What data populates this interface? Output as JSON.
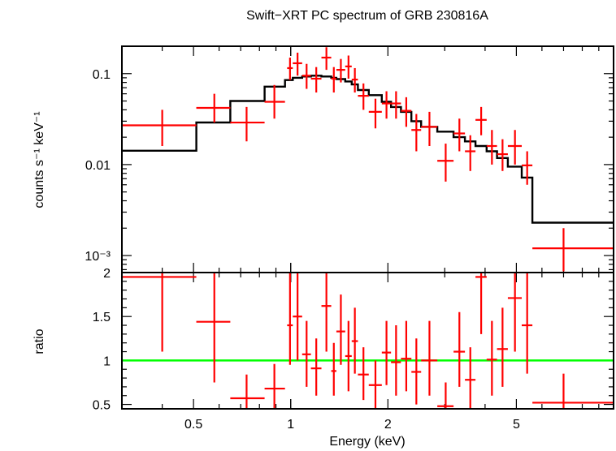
{
  "chart_data": {
    "type": "scatter",
    "title": "Swift−XRT PC spectrum of GRB 230816A",
    "xlabel": "Energy (keV)",
    "x_scale": "log",
    "xlim": [
      0.3,
      10
    ],
    "x_ticks": [
      {
        "value": 0.5,
        "label": "0.5"
      },
      {
        "value": 1,
        "label": "1"
      },
      {
        "value": 2,
        "label": "2"
      },
      {
        "value": 5,
        "label": "5"
      }
    ],
    "colors": {
      "data": "#ff0000",
      "model": "#000000",
      "unity": "#00ff00",
      "axes": "#000000"
    },
    "top_panel": {
      "ylabel": "counts s⁻¹ keV⁻¹",
      "y_scale": "log",
      "ylim": [
        0.00065,
        0.2
      ],
      "y_ticks": [
        {
          "value": 0.1,
          "label": "0.1"
        },
        {
          "value": 0.01,
          "label": "0.01"
        },
        {
          "value": 0.001,
          "label": "10⁻³"
        }
      ],
      "data": [
        {
          "x": 0.4,
          "xlo": 0.3,
          "xhi": 0.51,
          "y": 0.027,
          "ylo": 0.016,
          "yhi": 0.04
        },
        {
          "x": 0.58,
          "xlo": 0.51,
          "xhi": 0.65,
          "y": 0.042,
          "ylo": 0.029,
          "yhi": 0.06
        },
        {
          "x": 0.73,
          "xlo": 0.65,
          "xhi": 0.83,
          "y": 0.029,
          "ylo": 0.018,
          "yhi": 0.043
        },
        {
          "x": 0.89,
          "xlo": 0.83,
          "xhi": 0.96,
          "y": 0.049,
          "ylo": 0.032,
          "yhi": 0.075
        },
        {
          "x": 0.995,
          "xlo": 0.975,
          "xhi": 1.015,
          "y": 0.115,
          "ylo": 0.085,
          "yhi": 0.15
        },
        {
          "x": 1.05,
          "xlo": 1.015,
          "xhi": 1.085,
          "y": 0.13,
          "ylo": 0.095,
          "yhi": 0.17
        },
        {
          "x": 1.12,
          "xlo": 1.085,
          "xhi": 1.155,
          "y": 0.095,
          "ylo": 0.068,
          "yhi": 0.128
        },
        {
          "x": 1.2,
          "xlo": 1.155,
          "xhi": 1.245,
          "y": 0.088,
          "ylo": 0.062,
          "yhi": 0.118
        },
        {
          "x": 1.29,
          "xlo": 1.245,
          "xhi": 1.335,
          "y": 0.15,
          "ylo": 0.11,
          "yhi": 0.195
        },
        {
          "x": 1.36,
          "xlo": 1.335,
          "xhi": 1.385,
          "y": 0.088,
          "ylo": 0.062,
          "yhi": 0.118
        },
        {
          "x": 1.43,
          "xlo": 1.385,
          "xhi": 1.475,
          "y": 0.11,
          "ylo": 0.08,
          "yhi": 0.145
        },
        {
          "x": 1.51,
          "xlo": 1.475,
          "xhi": 1.545,
          "y": 0.12,
          "ylo": 0.088,
          "yhi": 0.158
        },
        {
          "x": 1.58,
          "xlo": 1.545,
          "xhi": 1.615,
          "y": 0.086,
          "ylo": 0.062,
          "yhi": 0.115
        },
        {
          "x": 1.68,
          "xlo": 1.615,
          "xhi": 1.745,
          "y": 0.057,
          "ylo": 0.04,
          "yhi": 0.078
        },
        {
          "x": 1.83,
          "xlo": 1.745,
          "xhi": 1.915,
          "y": 0.038,
          "ylo": 0.025,
          "yhi": 0.053
        },
        {
          "x": 1.98,
          "xlo": 1.915,
          "xhi": 2.045,
          "y": 0.047,
          "ylo": 0.032,
          "yhi": 0.064
        },
        {
          "x": 2.12,
          "xlo": 2.045,
          "xhi": 2.195,
          "y": 0.047,
          "ylo": 0.032,
          "yhi": 0.064
        },
        {
          "x": 2.28,
          "xlo": 2.195,
          "xhi": 2.365,
          "y": 0.039,
          "ylo": 0.026,
          "yhi": 0.055
        },
        {
          "x": 2.45,
          "xlo": 2.365,
          "xhi": 2.535,
          "y": 0.024,
          "ylo": 0.014,
          "yhi": 0.036
        },
        {
          "x": 2.69,
          "xlo": 2.535,
          "xhi": 2.845,
          "y": 0.026,
          "ylo": 0.016,
          "yhi": 0.038
        },
        {
          "x": 3.02,
          "xlo": 2.845,
          "xhi": 3.195,
          "y": 0.011,
          "ylo": 0.0065,
          "yhi": 0.017
        },
        {
          "x": 3.33,
          "xlo": 3.195,
          "xhi": 3.465,
          "y": 0.022,
          "ylo": 0.014,
          "yhi": 0.032
        },
        {
          "x": 3.6,
          "xlo": 3.465,
          "xhi": 3.735,
          "y": 0.014,
          "ylo": 0.0085,
          "yhi": 0.021
        },
        {
          "x": 3.89,
          "xlo": 3.735,
          "xhi": 4.045,
          "y": 0.031,
          "ylo": 0.021,
          "yhi": 0.043
        },
        {
          "x": 4.2,
          "xlo": 4.045,
          "xhi": 4.355,
          "y": 0.016,
          "ylo": 0.01,
          "yhi": 0.024
        },
        {
          "x": 4.53,
          "xlo": 4.355,
          "xhi": 4.705,
          "y": 0.013,
          "ylo": 0.0085,
          "yhi": 0.019
        },
        {
          "x": 4.95,
          "xlo": 4.705,
          "xhi": 5.195,
          "y": 0.016,
          "ylo": 0.01,
          "yhi": 0.024
        },
        {
          "x": 5.4,
          "xlo": 5.195,
          "xhi": 5.605,
          "y": 0.0098,
          "ylo": 0.006,
          "yhi": 0.014
        },
        {
          "x": 7.0,
          "xlo": 5.605,
          "xhi": 10.0,
          "y": 0.0012,
          "ylo": 0.00067,
          "yhi": 0.002
        }
      ],
      "model_steps": [
        {
          "x0": 0.3,
          "x1": 0.51,
          "y": 0.0142
        },
        {
          "x0": 0.51,
          "x1": 0.65,
          "y": 0.029
        },
        {
          "x0": 0.65,
          "x1": 0.83,
          "y": 0.05
        },
        {
          "x0": 0.83,
          "x1": 0.96,
          "y": 0.072
        },
        {
          "x0": 0.96,
          "x1": 1.015,
          "y": 0.085
        },
        {
          "x0": 1.015,
          "x1": 1.085,
          "y": 0.09
        },
        {
          "x0": 1.085,
          "x1": 1.155,
          "y": 0.093
        },
        {
          "x0": 1.155,
          "x1": 1.245,
          "y": 0.095
        },
        {
          "x0": 1.245,
          "x1": 1.335,
          "y": 0.093
        },
        {
          "x0": 1.335,
          "x1": 1.385,
          "y": 0.09
        },
        {
          "x0": 1.385,
          "x1": 1.475,
          "y": 0.087
        },
        {
          "x0": 1.475,
          "x1": 1.545,
          "y": 0.082
        },
        {
          "x0": 1.545,
          "x1": 1.615,
          "y": 0.076
        },
        {
          "x0": 1.615,
          "x1": 1.745,
          "y": 0.066
        },
        {
          "x0": 1.745,
          "x1": 1.915,
          "y": 0.058
        },
        {
          "x0": 1.915,
          "x1": 2.045,
          "y": 0.049
        },
        {
          "x0": 2.045,
          "x1": 2.195,
          "y": 0.043
        },
        {
          "x0": 2.195,
          "x1": 2.365,
          "y": 0.038
        },
        {
          "x0": 2.365,
          "x1": 2.535,
          "y": 0.03
        },
        {
          "x0": 2.535,
          "x1": 2.845,
          "y": 0.026
        },
        {
          "x0": 2.845,
          "x1": 3.195,
          "y": 0.023
        },
        {
          "x0": 3.195,
          "x1": 3.465,
          "y": 0.02
        },
        {
          "x0": 3.465,
          "x1": 3.735,
          "y": 0.018
        },
        {
          "x0": 3.735,
          "x1": 4.045,
          "y": 0.016
        },
        {
          "x0": 4.045,
          "x1": 4.355,
          "y": 0.014
        },
        {
          "x0": 4.355,
          "x1": 4.705,
          "y": 0.0118
        },
        {
          "x0": 4.705,
          "x1": 5.195,
          "y": 0.0095
        },
        {
          "x0": 5.195,
          "x1": 5.605,
          "y": 0.0072
        },
        {
          "x0": 5.605,
          "x1": 10.0,
          "y": 0.0023
        }
      ]
    },
    "bottom_panel": {
      "ylabel": "ratio",
      "y_scale": "linear",
      "ylim": [
        0.45,
        2.0
      ],
      "y_ticks": [
        {
          "value": 0.5,
          "label": "0.5"
        },
        {
          "value": 1,
          "label": "1"
        },
        {
          "value": 1.5,
          "label": "1.5"
        },
        {
          "value": 2,
          "label": "2"
        }
      ],
      "reference_line": 1.0,
      "data": [
        {
          "x": 0.4,
          "xlo": 0.3,
          "xhi": 0.51,
          "y": 1.95,
          "ylo": 1.1,
          "yhi": 2.0
        },
        {
          "x": 0.58,
          "xlo": 0.51,
          "xhi": 0.65,
          "y": 1.44,
          "ylo": 0.75,
          "yhi": 2.0
        },
        {
          "x": 0.73,
          "xlo": 0.65,
          "xhi": 0.83,
          "y": 0.57,
          "ylo": 0.45,
          "yhi": 0.84
        },
        {
          "x": 0.89,
          "xlo": 0.83,
          "xhi": 0.96,
          "y": 0.68,
          "ylo": 0.45,
          "yhi": 0.96
        },
        {
          "x": 0.995,
          "xlo": 0.975,
          "xhi": 1.015,
          "y": 1.4,
          "ylo": 0.95,
          "yhi": 2.0
        },
        {
          "x": 1.05,
          "xlo": 1.015,
          "xhi": 1.085,
          "y": 1.5,
          "ylo": 1.0,
          "yhi": 2.0
        },
        {
          "x": 1.12,
          "xlo": 1.085,
          "xhi": 1.155,
          "y": 1.07,
          "ylo": 0.7,
          "yhi": 1.45
        },
        {
          "x": 1.2,
          "xlo": 1.155,
          "xhi": 1.245,
          "y": 0.91,
          "ylo": 0.6,
          "yhi": 1.25
        },
        {
          "x": 1.29,
          "xlo": 1.245,
          "xhi": 1.335,
          "y": 1.62,
          "ylo": 1.1,
          "yhi": 2.0
        },
        {
          "x": 1.36,
          "xlo": 1.335,
          "xhi": 1.385,
          "y": 0.88,
          "ylo": 0.6,
          "yhi": 1.2
        },
        {
          "x": 1.43,
          "xlo": 1.385,
          "xhi": 1.475,
          "y": 1.33,
          "ylo": 0.95,
          "yhi": 1.75
        },
        {
          "x": 1.51,
          "xlo": 1.475,
          "xhi": 1.545,
          "y": 1.05,
          "ylo": 0.65,
          "yhi": 1.45
        },
        {
          "x": 1.58,
          "xlo": 1.545,
          "xhi": 1.615,
          "y": 1.22,
          "ylo": 0.85,
          "yhi": 1.6
        },
        {
          "x": 1.68,
          "xlo": 1.615,
          "xhi": 1.745,
          "y": 0.84,
          "ylo": 0.55,
          "yhi": 1.15
        },
        {
          "x": 1.83,
          "xlo": 1.745,
          "xhi": 1.915,
          "y": 0.72,
          "ylo": 0.45,
          "yhi": 1.0
        },
        {
          "x": 1.98,
          "xlo": 1.915,
          "xhi": 2.045,
          "y": 1.09,
          "ylo": 0.72,
          "yhi": 1.45
        },
        {
          "x": 2.12,
          "xlo": 2.045,
          "xhi": 2.195,
          "y": 0.98,
          "ylo": 0.6,
          "yhi": 1.4
        },
        {
          "x": 2.28,
          "xlo": 2.195,
          "xhi": 2.365,
          "y": 1.02,
          "ylo": 0.65,
          "yhi": 1.45
        },
        {
          "x": 2.45,
          "xlo": 2.365,
          "xhi": 2.535,
          "y": 0.87,
          "ylo": 0.5,
          "yhi": 1.25
        },
        {
          "x": 2.69,
          "xlo": 2.535,
          "xhi": 2.845,
          "y": 1.0,
          "ylo": 0.6,
          "yhi": 1.45
        },
        {
          "x": 3.02,
          "xlo": 2.845,
          "xhi": 3.195,
          "y": 0.48,
          "ylo": 0.45,
          "yhi": 0.75
        },
        {
          "x": 3.33,
          "xlo": 3.195,
          "xhi": 3.465,
          "y": 1.1,
          "ylo": 0.7,
          "yhi": 1.55
        },
        {
          "x": 3.6,
          "xlo": 3.465,
          "xhi": 3.735,
          "y": 0.78,
          "ylo": 0.45,
          "yhi": 1.15
        },
        {
          "x": 3.89,
          "xlo": 3.735,
          "xhi": 4.045,
          "y": 1.95,
          "ylo": 1.3,
          "yhi": 2.0
        },
        {
          "x": 4.2,
          "xlo": 4.045,
          "xhi": 4.355,
          "y": 1.01,
          "ylo": 0.6,
          "yhi": 1.45
        },
        {
          "x": 4.53,
          "xlo": 4.355,
          "xhi": 4.705,
          "y": 1.13,
          "ylo": 0.7,
          "yhi": 1.6
        },
        {
          "x": 4.95,
          "xlo": 4.705,
          "xhi": 5.195,
          "y": 1.71,
          "ylo": 1.1,
          "yhi": 2.0
        },
        {
          "x": 5.4,
          "xlo": 5.195,
          "xhi": 5.605,
          "y": 1.4,
          "ylo": 0.85,
          "yhi": 2.0
        },
        {
          "x": 7.0,
          "xlo": 5.605,
          "xhi": 10.0,
          "y": 0.52,
          "ylo": 0.45,
          "yhi": 0.85
        }
      ]
    }
  }
}
